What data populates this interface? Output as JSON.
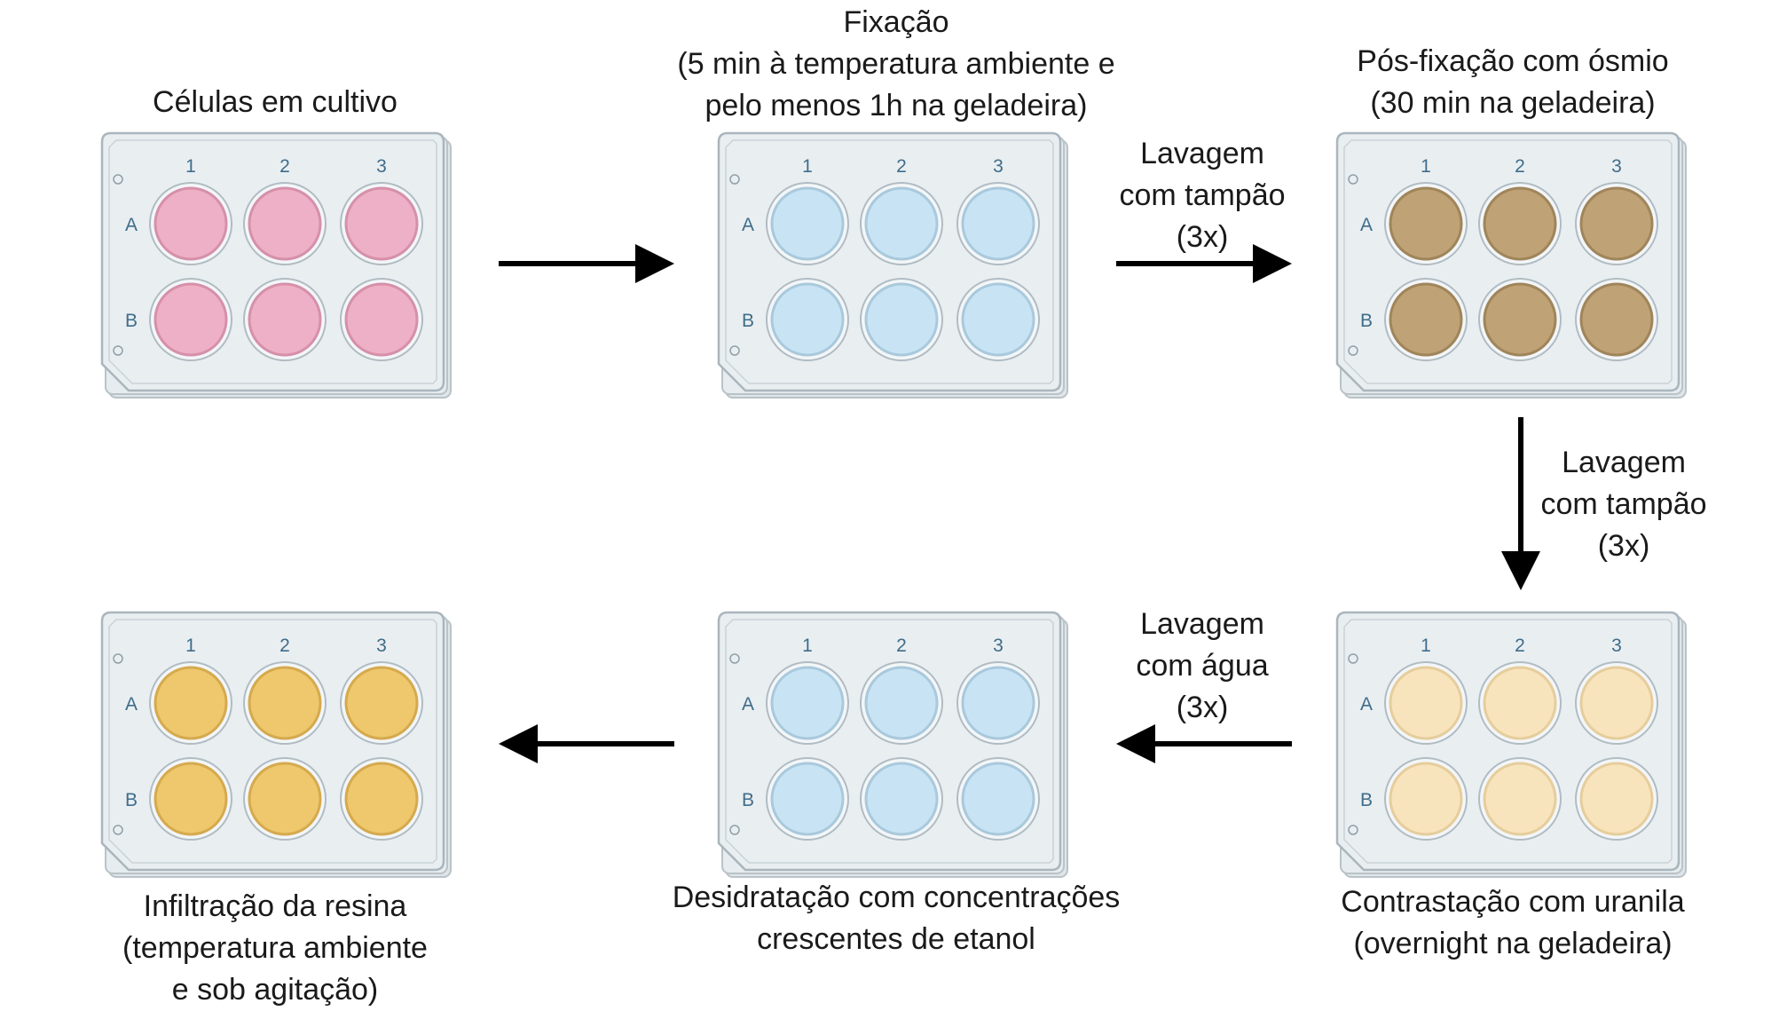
{
  "plate_labels": {
    "columns": [
      "1",
      "2",
      "3"
    ],
    "rows": [
      "A",
      "B"
    ]
  },
  "steps": [
    {
      "id": "cultura",
      "lines": [
        "Células em cultivo"
      ],
      "well_color": "#eeb0c6",
      "well_ring": "#d690a9"
    },
    {
      "id": "fixacao",
      "lines": [
        "Fixação",
        "(5 min à temperatura ambiente e",
        "pelo menos 1h na geladeira)"
      ],
      "well_color": "#c8e4f4",
      "well_ring": "#a9c9dc"
    },
    {
      "id": "pos-fixacao",
      "lines": [
        "Pós-fixação com ósmio",
        "(30 min na geladeira)"
      ],
      "well_color": "#bfa275",
      "well_ring": "#a0855b"
    },
    {
      "id": "contrastacao",
      "lines": [
        "Contrastação com uranila",
        "(overnight na geladeira)"
      ],
      "well_color": "#f8e4bc",
      "well_ring": "#e6cd9c"
    },
    {
      "id": "desidratacao",
      "lines": [
        "Desidratação com concentrações",
        "crescentes de etanol"
      ],
      "well_color": "#c8e4f4",
      "well_ring": "#a9c9dc"
    },
    {
      "id": "infiltracao",
      "lines": [
        "Infiltração da resina",
        "(temperatura ambiente",
        "e sob agitação)"
      ],
      "well_color": "#efc76c",
      "well_ring": "#d5aa4e"
    }
  ],
  "transitions": [
    {
      "id": "t1",
      "lines": []
    },
    {
      "id": "t2",
      "lines": [
        "Lavagem",
        "com tampão",
        "(3x)"
      ]
    },
    {
      "id": "t3",
      "lines": [
        "Lavagem",
        "com tampão",
        "(3x)"
      ]
    },
    {
      "id": "t4",
      "lines": [
        "Lavagem",
        "com água",
        "(3x)"
      ]
    },
    {
      "id": "t5",
      "lines": []
    }
  ]
}
